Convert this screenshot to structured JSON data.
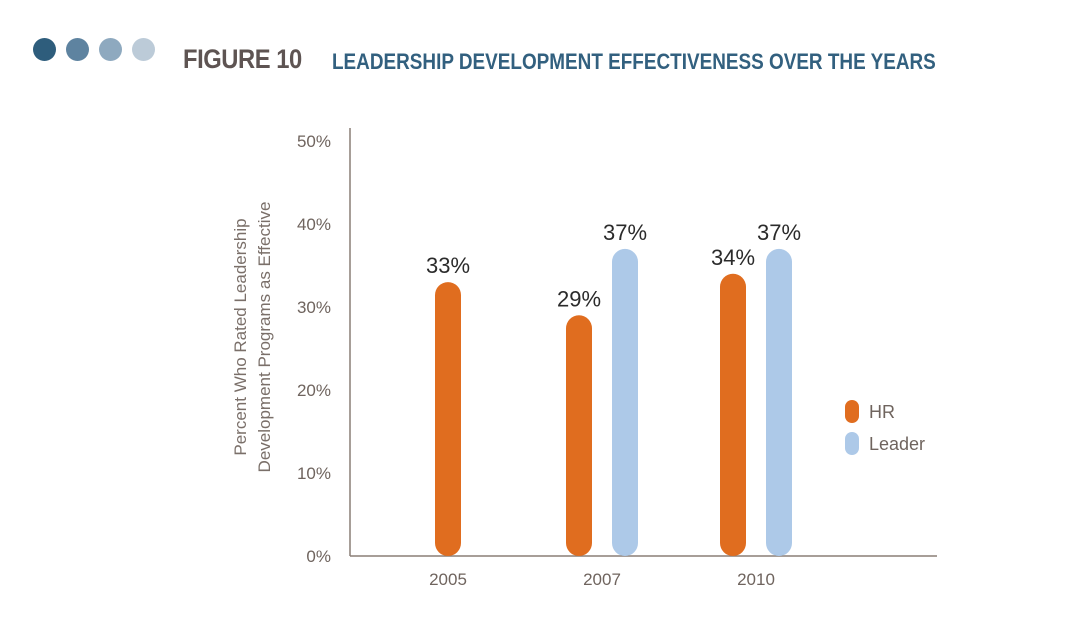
{
  "header": {
    "figure_label": "FIGURE 10",
    "dots": [
      "#2e5d7c",
      "#5e83a0",
      "#8ea9bf",
      "#bccbd8"
    ]
  },
  "chart_data": {
    "type": "bar",
    "title": "LEADERSHIP DEVELOPMENT EFFECTIVENESS OVER THE YEARS",
    "xlabel": "",
    "ylabel": [
      "Percent Who Rated Leadership",
      "Development Programs as Effective"
    ],
    "categories": [
      "2005",
      "2007",
      "2010"
    ],
    "series": [
      {
        "name": "HR",
        "color": "#e06d1f",
        "values": [
          33,
          29,
          34
        ],
        "labels": [
          "33%",
          "29%",
          "34%"
        ]
      },
      {
        "name": "Leader",
        "color": "#adc9e8",
        "values": [
          null,
          37,
          37
        ],
        "labels": [
          null,
          "37%",
          "37%"
        ]
      }
    ],
    "ylim": [
      0,
      50
    ],
    "yticks": [
      0,
      10,
      20,
      30,
      40,
      50
    ],
    "ytick_labels": [
      "0%",
      "10%",
      "20%",
      "30%",
      "40%",
      "50%"
    ],
    "grid": false,
    "legend_position": "right"
  }
}
